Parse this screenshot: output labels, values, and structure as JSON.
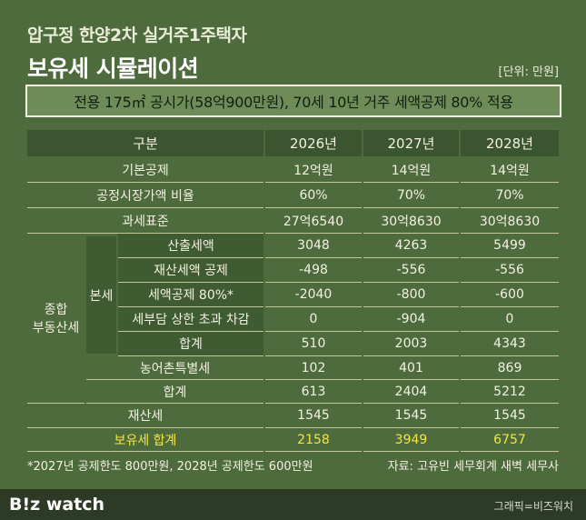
{
  "header": {
    "title": "압구정 한양2차 실거주1주택자",
    "subtitle": "보유세 시뮬레이션",
    "unit": "[단위: 만원]"
  },
  "banner": "전용 175㎡ 공시가(58억900만원), 70세 10년 거주 세액공제 80% 적용",
  "table": {
    "columns": [
      "구분",
      "2026년",
      "2027년",
      "2028년"
    ],
    "group_label": "종합 부동산세",
    "subgroup_label": "본세",
    "rows": [
      {
        "label": "기본공제",
        "values": [
          "12억원",
          "14억원",
          "14억원"
        ]
      },
      {
        "label": "공정시장가액 비율",
        "values": [
          "60%",
          "70%",
          "70%"
        ]
      },
      {
        "label": "과세표준",
        "values": [
          "27억6540",
          "30억8630",
          "30억8630"
        ]
      },
      {
        "label": "산출세액",
        "values": [
          3048,
          4263,
          5499
        ]
      },
      {
        "label": "재산세액 공제",
        "values": [
          -498,
          -556,
          -556
        ]
      },
      {
        "label": "세액공제 80%*",
        "values": [
          -2040,
          -800,
          -600
        ]
      },
      {
        "label": "세부담 상한 초과 차감",
        "values": [
          0,
          -904,
          0
        ]
      },
      {
        "label": "합계",
        "values": [
          510,
          2003,
          4343
        ]
      },
      {
        "label": "농어촌특별세",
        "values": [
          102,
          401,
          869
        ]
      },
      {
        "label": "합계",
        "values": [
          613,
          2404,
          5212
        ]
      },
      {
        "label": "재산세",
        "values": [
          1545,
          1545,
          1545
        ]
      },
      {
        "label": "보유세 합계",
        "values": [
          2158,
          3949,
          6757
        ]
      }
    ]
  },
  "footnote": "*2027년 공제한도 800만원, 2028년 공제한도 600만원",
  "source": "자료: 고유빈 세무회계 새벽 세무사",
  "logo": "B!z watch",
  "credit": "그래픽=비즈워치"
}
